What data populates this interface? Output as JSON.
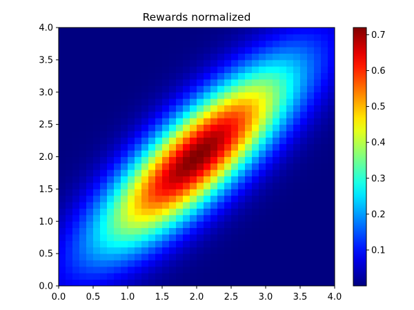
{
  "chart_data": {
    "type": "heatmap",
    "title": "Rewards normalized",
    "xlabel": "",
    "ylabel": "",
    "xlim": [
      0.0,
      4.0
    ],
    "ylim": [
      0.0,
      4.0
    ],
    "grid_size": [
      40,
      40
    ],
    "colormap": "jet",
    "grid": false,
    "x_ticks": [
      "0.0",
      "0.5",
      "1.0",
      "1.5",
      "2.0",
      "2.5",
      "3.0",
      "3.5",
      "4.0"
    ],
    "y_ticks": [
      "0.0",
      "0.5",
      "1.0",
      "1.5",
      "2.0",
      "2.5",
      "3.0",
      "3.5",
      "4.0"
    ],
    "distribution": {
      "kind": "gaussian",
      "mean": [
        2.0,
        2.0
      ],
      "std": [
        0.97,
        0.97
      ],
      "correlation": 0.82,
      "peak_value": 0.72
    },
    "colorbar": {
      "range": [
        0.0,
        0.72
      ],
      "ticks": [
        "0.1",
        "0.2",
        "0.3",
        "0.4",
        "0.5",
        "0.6",
        "0.7"
      ],
      "tick_values": [
        0.1,
        0.2,
        0.3,
        0.4,
        0.5,
        0.6,
        0.7
      ]
    }
  }
}
